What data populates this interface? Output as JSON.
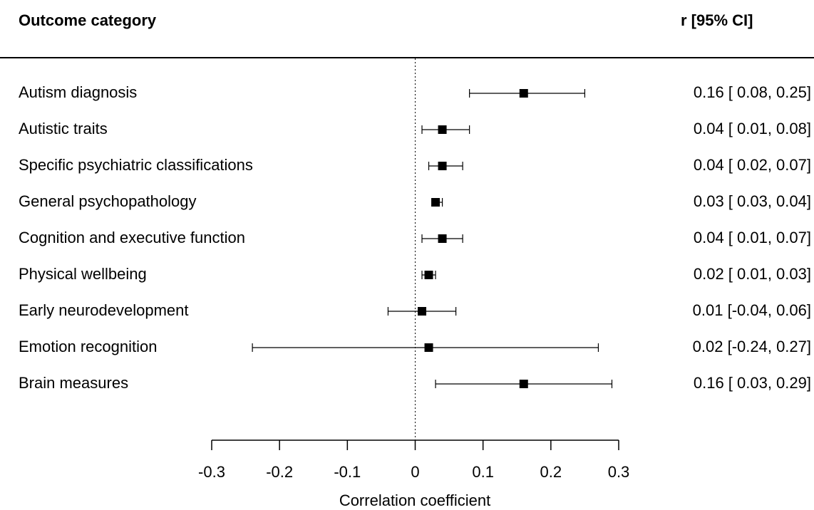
{
  "header": {
    "left_title": "Outcome category",
    "right_title": "r [95% CI]"
  },
  "chart_data": {
    "type": "scatter",
    "subtype": "forest",
    "xlabel": "Correlation coefficient",
    "xlim": [
      -0.3,
      0.3
    ],
    "xticks": [
      "-0.3",
      "-0.2",
      "-0.1",
      "0",
      "0.1",
      "0.2",
      "0.3"
    ],
    "reference_line": 0,
    "rows": [
      {
        "label": "Autism diagnosis",
        "r": 0.16,
        "lo": 0.08,
        "hi": 0.25,
        "ci_text": "0.16 [ 0.08, 0.25]"
      },
      {
        "label": "Autistic traits",
        "r": 0.04,
        "lo": 0.01,
        "hi": 0.08,
        "ci_text": "0.04 [ 0.01, 0.08]"
      },
      {
        "label": "Specific psychiatric classifications",
        "r": 0.04,
        "lo": 0.02,
        "hi": 0.07,
        "ci_text": "0.04 [ 0.02, 0.07]"
      },
      {
        "label": "General psychopathology",
        "r": 0.03,
        "lo": 0.03,
        "hi": 0.04,
        "ci_text": "0.03 [ 0.03, 0.04]"
      },
      {
        "label": "Cognition and executive function",
        "r": 0.04,
        "lo": 0.01,
        "hi": 0.07,
        "ci_text": "0.04 [ 0.01, 0.07]"
      },
      {
        "label": "Physical wellbeing",
        "r": 0.02,
        "lo": 0.01,
        "hi": 0.03,
        "ci_text": "0.02 [ 0.01, 0.03]"
      },
      {
        "label": "Early neurodevelopment",
        "r": 0.01,
        "lo": -0.04,
        "hi": 0.06,
        "ci_text": "0.01 [-0.04, 0.06]"
      },
      {
        "label": "Emotion recognition",
        "r": 0.02,
        "lo": -0.24,
        "hi": 0.27,
        "ci_text": "0.02 [-0.24, 0.27]"
      },
      {
        "label": "Brain measures",
        "r": 0.16,
        "lo": 0.03,
        "hi": 0.29,
        "ci_text": "0.16 [ 0.03, 0.29]"
      }
    ]
  }
}
